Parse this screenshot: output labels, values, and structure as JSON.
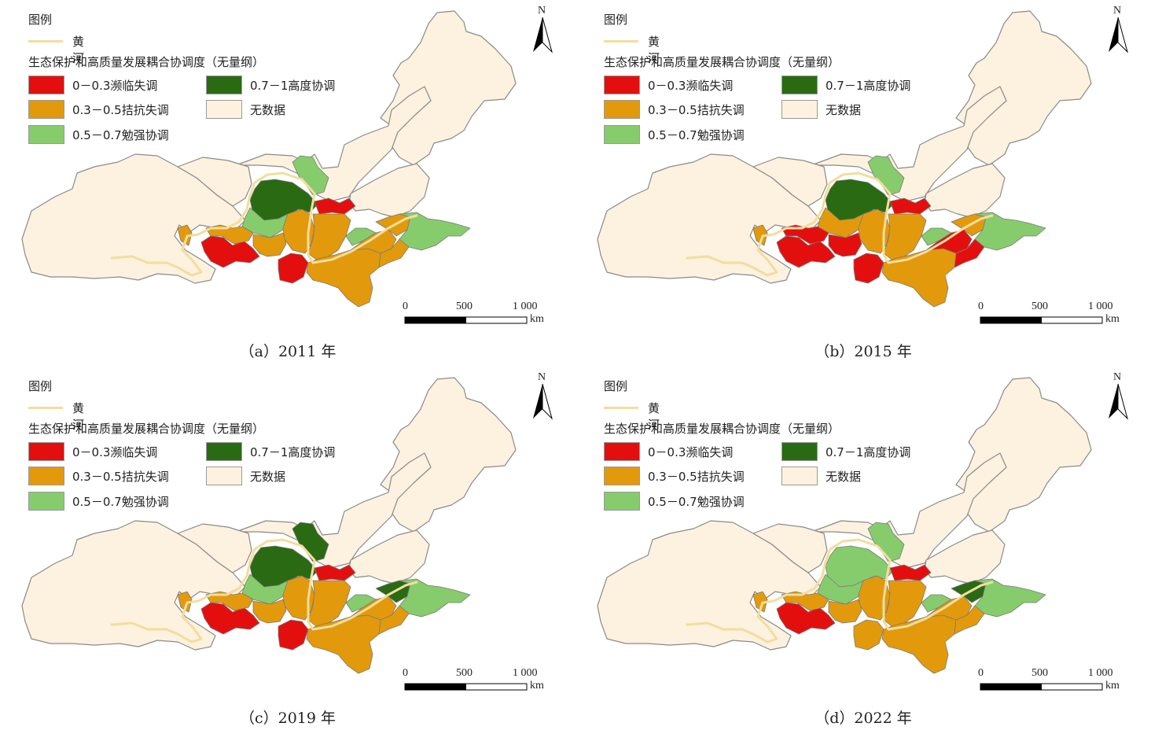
{
  "colors": {
    "severe": "#e30f0f",
    "resist": "#e29a0c",
    "barely": "#86cc6c",
    "high": "#2a6a13",
    "nodata": "#fcf2df",
    "river": "#f3dd9e",
    "border": "#8a8a8a"
  },
  "legend": {
    "title": "图例",
    "river_label": "黄河",
    "subtitle": "生态保护和高质量发展耦合协调度（无量纲）",
    "items": [
      {
        "key": "severe",
        "label": "0－0.3濒临失调"
      },
      {
        "key": "high",
        "label": "0.7－1高度协调"
      },
      {
        "key": "resist",
        "label": "0.3－0.5拮抗失调"
      },
      {
        "key": "nodata",
        "label": "无数据"
      },
      {
        "key": "barely",
        "label": "0.5－0.7勉强协调"
      }
    ]
  },
  "north_label": "N",
  "scale": {
    "ticks": [
      "0",
      "500",
      "1 000"
    ],
    "unit": "km"
  },
  "panels": [
    {
      "caption": "（a）2011 年",
      "regions": {
        "north_core": "high",
        "north_tip": "barely",
        "ningxia": "barely",
        "n_shanxi": "severe",
        "shaanxi_n": "resist",
        "w_group": "severe",
        "gansu_e": "resist",
        "c_west": "resist",
        "shanxi": "resist",
        "henan": "resist",
        "s_shaanxi": "severe",
        "shandong_w": "barely",
        "shandong_e": "barely",
        "shandong_c": "resist",
        "far_w": "resist",
        "east_strip": "resist",
        "se_henan": "resist"
      }
    },
    {
      "caption": "（b）2015 年",
      "regions": {
        "north_core": "high",
        "north_tip": "barely",
        "ningxia": "resist",
        "n_shanxi": "severe",
        "shaanxi_n": "resist",
        "w_group": "severe",
        "gansu_e": "severe",
        "c_west": "severe",
        "shanxi": "resist",
        "henan": "resist",
        "s_shaanxi": "severe",
        "shandong_w": "barely",
        "shandong_e": "barely",
        "shandong_c": "resist",
        "far_w": "resist",
        "east_strip": "severe",
        "se_henan": "severe"
      }
    },
    {
      "caption": "（c）2019 年",
      "regions": {
        "north_core": "high",
        "north_tip": "high",
        "ningxia": "barely",
        "n_shanxi": "severe",
        "shaanxi_n": "resist",
        "w_group": "severe",
        "gansu_e": "resist",
        "c_west": "resist",
        "shanxi": "resist",
        "henan": "resist",
        "s_shaanxi": "severe",
        "shandong_w": "barely",
        "shandong_e": "barely",
        "shandong_c": "high",
        "far_w": "resist",
        "east_strip": "resist",
        "se_henan": "resist"
      }
    },
    {
      "caption": "（d）2022 年",
      "regions": {
        "north_core": "barely",
        "north_tip": "barely",
        "ningxia": "barely",
        "n_shanxi": "severe",
        "shaanxi_n": "resist",
        "w_group": "severe",
        "gansu_e": "resist",
        "c_west": "resist",
        "shanxi": "resist",
        "henan": "resist",
        "s_shaanxi": "resist",
        "shandong_w": "barely",
        "shandong_e": "barely",
        "shandong_c": "high",
        "far_w": "resist",
        "east_strip": "resist",
        "se_henan": "resist"
      }
    }
  ]
}
